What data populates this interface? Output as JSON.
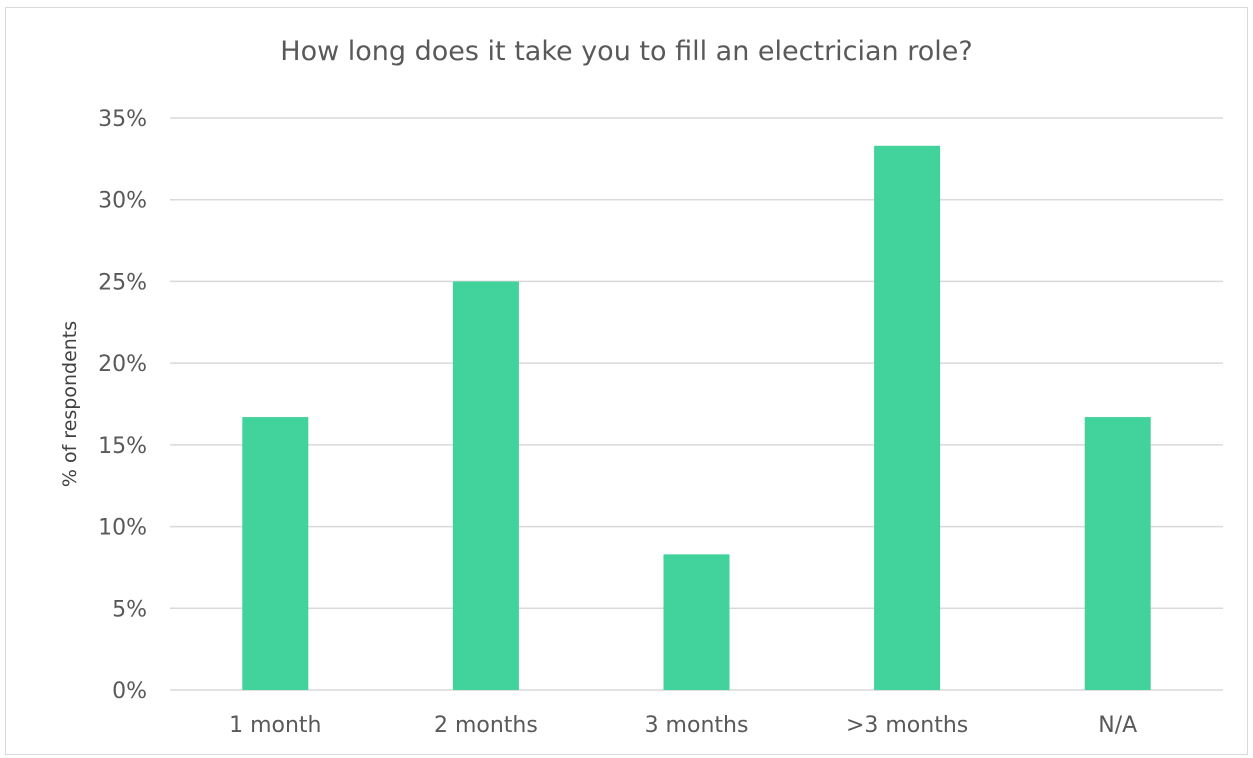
{
  "chart_data": {
    "type": "bar",
    "title": "How long does it take you to fill an electrician role?",
    "xlabel": "",
    "ylabel": "% of respondents",
    "categories": [
      "1 month",
      "2 months",
      "3 months",
      ">3 months",
      "N/A"
    ],
    "values": [
      16.7,
      25.0,
      8.3,
      33.3,
      16.7
    ],
    "ylim": [
      0,
      35
    ],
    "y_ticks": [
      0,
      5,
      10,
      15,
      20,
      25,
      30,
      35
    ],
    "y_tick_labels": [
      "0%",
      "5%",
      "10%",
      "15%",
      "20%",
      "25%",
      "30%",
      "35%"
    ],
    "grid": true,
    "legend": "none",
    "colors": {
      "bar": "#42d29b",
      "grid": "#d9d9d9",
      "tick_text": "#595959",
      "title_text": "#595959"
    }
  }
}
